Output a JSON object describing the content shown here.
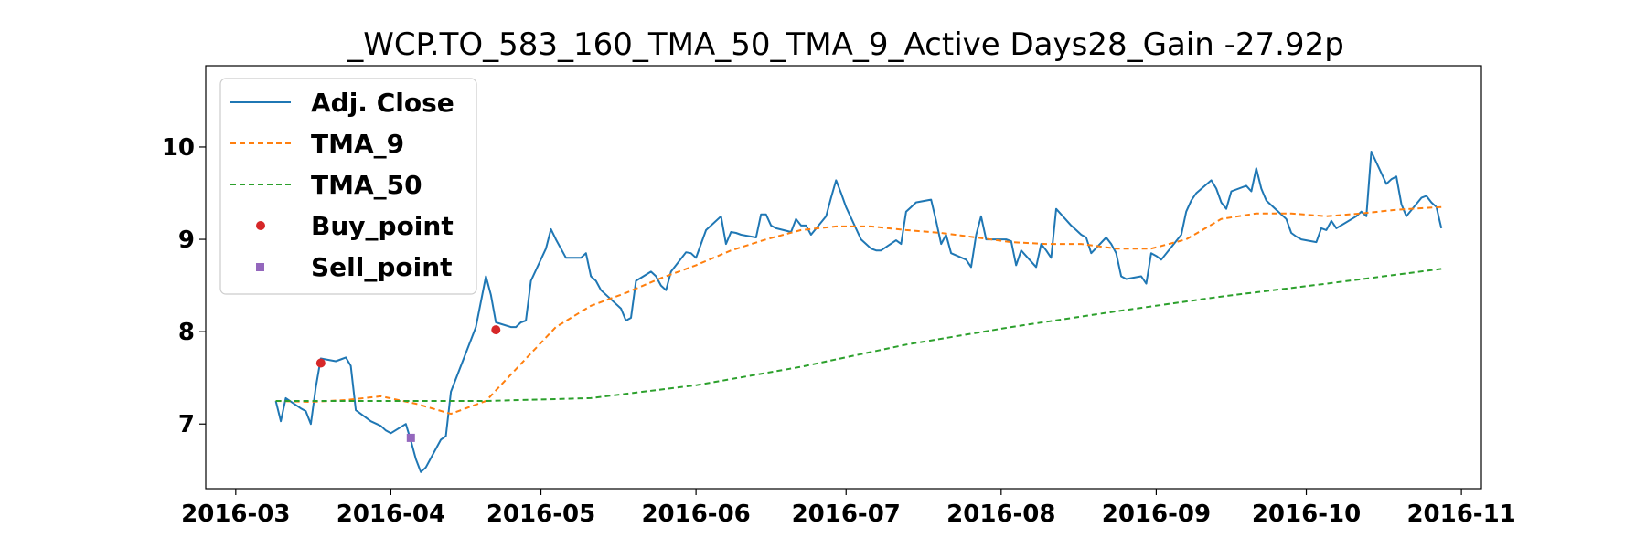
{
  "chart_data": {
    "type": "line",
    "title": "_WCP.TO_583_160_TMA_50_TMA_9_Active Days28_Gain -27.92p",
    "xlabel": "",
    "ylabel": "",
    "xlim": [
      "2016-02-24",
      "2016-11-05"
    ],
    "ylim": [
      6.3,
      10.88
    ],
    "x_ticks": [
      "2016-03",
      "2016-04",
      "2016-05",
      "2016-06",
      "2016-07",
      "2016-08",
      "2016-09",
      "2016-10",
      "2016-11"
    ],
    "y_ticks": [
      7,
      8,
      9,
      10
    ],
    "grid": false,
    "legend_position": "upper-left",
    "series": [
      {
        "name": "Adj. Close",
        "style": "solid",
        "color": "#1f77b4",
        "points": [
          [
            "2016-03-09",
            7.25
          ],
          [
            "2016-03-10",
            7.03
          ],
          [
            "2016-03-11",
            7.28
          ],
          [
            "2016-03-14",
            7.17
          ],
          [
            "2016-03-15",
            7.14
          ],
          [
            "2016-03-16",
            7.0
          ],
          [
            "2016-03-17",
            7.4
          ],
          [
            "2016-03-18",
            7.71
          ],
          [
            "2016-03-21",
            7.68
          ],
          [
            "2016-03-22",
            7.7
          ],
          [
            "2016-03-23",
            7.72
          ],
          [
            "2016-03-24",
            7.63
          ],
          [
            "2016-03-25",
            7.15
          ],
          [
            "2016-03-28",
            7.03
          ],
          [
            "2016-03-30",
            6.98
          ],
          [
            "2016-03-31",
            6.93
          ],
          [
            "2016-04-01",
            6.9
          ],
          [
            "2016-04-04",
            7.0
          ],
          [
            "2016-04-05",
            6.82
          ],
          [
            "2016-04-06",
            6.62
          ],
          [
            "2016-04-07",
            6.48
          ],
          [
            "2016-04-08",
            6.53
          ],
          [
            "2016-04-11",
            6.83
          ],
          [
            "2016-04-12",
            6.87
          ],
          [
            "2016-04-13",
            7.35
          ],
          [
            "2016-04-18",
            8.05
          ],
          [
            "2016-04-20",
            8.6
          ],
          [
            "2016-04-21",
            8.4
          ],
          [
            "2016-04-22",
            8.1
          ],
          [
            "2016-04-25",
            8.05
          ],
          [
            "2016-04-26",
            8.05
          ],
          [
            "2016-04-27",
            8.1
          ],
          [
            "2016-04-28",
            8.12
          ],
          [
            "2016-04-29",
            8.55
          ],
          [
            "2016-05-02",
            8.9
          ],
          [
            "2016-05-03",
            9.11
          ],
          [
            "2016-05-04",
            9.0
          ],
          [
            "2016-05-05",
            8.9
          ],
          [
            "2016-05-06",
            8.8
          ],
          [
            "2016-05-09",
            8.8
          ],
          [
            "2016-05-10",
            8.85
          ],
          [
            "2016-05-11",
            8.6
          ],
          [
            "2016-05-12",
            8.55
          ],
          [
            "2016-05-13",
            8.45
          ],
          [
            "2016-05-16",
            8.3
          ],
          [
            "2016-05-17",
            8.25
          ],
          [
            "2016-05-18",
            8.12
          ],
          [
            "2016-05-19",
            8.15
          ],
          [
            "2016-05-20",
            8.55
          ],
          [
            "2016-05-23",
            8.65
          ],
          [
            "2016-05-24",
            8.6
          ],
          [
            "2016-05-25",
            8.5
          ],
          [
            "2016-05-26",
            8.45
          ],
          [
            "2016-05-27",
            8.65
          ],
          [
            "2016-05-30",
            8.86
          ],
          [
            "2016-05-31",
            8.85
          ],
          [
            "2016-06-01",
            8.8
          ],
          [
            "2016-06-02",
            8.95
          ],
          [
            "2016-06-03",
            9.1
          ],
          [
            "2016-06-06",
            9.25
          ],
          [
            "2016-06-07",
            8.95
          ],
          [
            "2016-06-08",
            9.08
          ],
          [
            "2016-06-09",
            9.07
          ],
          [
            "2016-06-10",
            9.05
          ],
          [
            "2016-06-13",
            9.02
          ],
          [
            "2016-06-14",
            9.27
          ],
          [
            "2016-06-15",
            9.27
          ],
          [
            "2016-06-16",
            9.15
          ],
          [
            "2016-06-17",
            9.12
          ],
          [
            "2016-06-20",
            9.08
          ],
          [
            "2016-06-21",
            9.22
          ],
          [
            "2016-06-22",
            9.15
          ],
          [
            "2016-06-23",
            9.15
          ],
          [
            "2016-06-24",
            9.05
          ],
          [
            "2016-06-27",
            9.25
          ],
          [
            "2016-06-28",
            9.45
          ],
          [
            "2016-06-29",
            9.64
          ],
          [
            "2016-06-30",
            9.5
          ],
          [
            "2016-07-01",
            9.35
          ],
          [
            "2016-07-04",
            9.0
          ],
          [
            "2016-07-05",
            8.95
          ],
          [
            "2016-07-06",
            8.9
          ],
          [
            "2016-07-07",
            8.88
          ],
          [
            "2016-07-08",
            8.88
          ],
          [
            "2016-07-11",
            8.99
          ],
          [
            "2016-07-12",
            8.95
          ],
          [
            "2016-07-13",
            9.3
          ],
          [
            "2016-07-14",
            9.35
          ],
          [
            "2016-07-15",
            9.4
          ],
          [
            "2016-07-18",
            9.43
          ],
          [
            "2016-07-19",
            9.2
          ],
          [
            "2016-07-20",
            8.95
          ],
          [
            "2016-07-21",
            9.05
          ],
          [
            "2016-07-22",
            8.85
          ],
          [
            "2016-07-25",
            8.78
          ],
          [
            "2016-07-26",
            8.7
          ],
          [
            "2016-07-27",
            9.05
          ],
          [
            "2016-07-28",
            9.25
          ],
          [
            "2016-07-29",
            9.0
          ],
          [
            "2016-08-01",
            9.0
          ],
          [
            "2016-08-02",
            9.0
          ],
          [
            "2016-08-03",
            8.98
          ],
          [
            "2016-08-04",
            8.72
          ],
          [
            "2016-08-05",
            8.88
          ],
          [
            "2016-08-08",
            8.7
          ],
          [
            "2016-08-09",
            8.95
          ],
          [
            "2016-08-10",
            8.88
          ],
          [
            "2016-08-11",
            8.8
          ],
          [
            "2016-08-12",
            9.33
          ],
          [
            "2016-08-15",
            9.15
          ],
          [
            "2016-08-16",
            9.1
          ],
          [
            "2016-08-17",
            9.05
          ],
          [
            "2016-08-18",
            9.02
          ],
          [
            "2016-08-19",
            8.85
          ],
          [
            "2016-08-22",
            9.02
          ],
          [
            "2016-08-23",
            8.95
          ],
          [
            "2016-08-24",
            8.85
          ],
          [
            "2016-08-25",
            8.6
          ],
          [
            "2016-08-26",
            8.57
          ],
          [
            "2016-08-29",
            8.6
          ],
          [
            "2016-08-30",
            8.52
          ],
          [
            "2016-08-31",
            8.85
          ],
          [
            "2016-09-01",
            8.82
          ],
          [
            "2016-09-02",
            8.78
          ],
          [
            "2016-09-06",
            9.05
          ],
          [
            "2016-09-07",
            9.3
          ],
          [
            "2016-09-08",
            9.42
          ],
          [
            "2016-09-09",
            9.5
          ],
          [
            "2016-09-12",
            9.64
          ],
          [
            "2016-09-13",
            9.55
          ],
          [
            "2016-09-14",
            9.4
          ],
          [
            "2016-09-15",
            9.33
          ],
          [
            "2016-09-16",
            9.52
          ],
          [
            "2016-09-19",
            9.58
          ],
          [
            "2016-09-20",
            9.52
          ],
          [
            "2016-09-21",
            9.77
          ],
          [
            "2016-09-22",
            9.55
          ],
          [
            "2016-09-23",
            9.42
          ],
          [
            "2016-09-26",
            9.27
          ],
          [
            "2016-09-27",
            9.22
          ],
          [
            "2016-09-28",
            9.07
          ],
          [
            "2016-09-29",
            9.03
          ],
          [
            "2016-09-30",
            9.0
          ],
          [
            "2016-10-03",
            8.97
          ],
          [
            "2016-10-04",
            9.12
          ],
          [
            "2016-10-05",
            9.1
          ],
          [
            "2016-10-06",
            9.2
          ],
          [
            "2016-10-07",
            9.12
          ],
          [
            "2016-10-11",
            9.25
          ],
          [
            "2016-10-12",
            9.3
          ],
          [
            "2016-10-13",
            9.25
          ],
          [
            "2016-10-14",
            9.95
          ],
          [
            "2016-10-17",
            9.6
          ],
          [
            "2016-10-18",
            9.65
          ],
          [
            "2016-10-19",
            9.68
          ],
          [
            "2016-10-20",
            9.38
          ],
          [
            "2016-10-21",
            9.25
          ],
          [
            "2016-10-24",
            9.45
          ],
          [
            "2016-10-25",
            9.47
          ],
          [
            "2016-10-26",
            9.4
          ],
          [
            "2016-10-27",
            9.35
          ],
          [
            "2016-10-28",
            9.12
          ]
        ]
      },
      {
        "name": "TMA_9",
        "style": "dashed",
        "color": "#ff7f0e",
        "points": [
          [
            "2016-03-09",
            7.25
          ],
          [
            "2016-03-16",
            7.24
          ],
          [
            "2016-03-23",
            7.26
          ],
          [
            "2016-03-30",
            7.3
          ],
          [
            "2016-04-06",
            7.22
          ],
          [
            "2016-04-13",
            7.11
          ],
          [
            "2016-04-20",
            7.25
          ],
          [
            "2016-04-27",
            7.65
          ],
          [
            "2016-05-04",
            8.05
          ],
          [
            "2016-05-11",
            8.28
          ],
          [
            "2016-05-18",
            8.42
          ],
          [
            "2016-05-25",
            8.58
          ],
          [
            "2016-06-01",
            8.72
          ],
          [
            "2016-06-08",
            8.88
          ],
          [
            "2016-06-15",
            9.0
          ],
          [
            "2016-06-22",
            9.1
          ],
          [
            "2016-06-29",
            9.14
          ],
          [
            "2016-07-06",
            9.14
          ],
          [
            "2016-07-13",
            9.1
          ],
          [
            "2016-07-20",
            9.07
          ],
          [
            "2016-07-27",
            9.02
          ],
          [
            "2016-08-03",
            8.97
          ],
          [
            "2016-08-10",
            8.95
          ],
          [
            "2016-08-17",
            8.95
          ],
          [
            "2016-08-24",
            8.9
          ],
          [
            "2016-08-31",
            8.9
          ],
          [
            "2016-09-07",
            9.0
          ],
          [
            "2016-09-14",
            9.22
          ],
          [
            "2016-09-21",
            9.28
          ],
          [
            "2016-09-28",
            9.28
          ],
          [
            "2016-10-05",
            9.25
          ],
          [
            "2016-10-12",
            9.28
          ],
          [
            "2016-10-19",
            9.32
          ],
          [
            "2016-10-28",
            9.35
          ]
        ]
      },
      {
        "name": "TMA_50",
        "style": "dashed",
        "color": "#2ca02c",
        "points": [
          [
            "2016-03-09",
            7.25
          ],
          [
            "2016-03-30",
            7.25
          ],
          [
            "2016-04-20",
            7.25
          ],
          [
            "2016-05-11",
            7.28
          ],
          [
            "2016-06-01",
            7.42
          ],
          [
            "2016-06-22",
            7.62
          ],
          [
            "2016-07-13",
            7.86
          ],
          [
            "2016-08-03",
            8.05
          ],
          [
            "2016-08-24",
            8.22
          ],
          [
            "2016-09-14",
            8.38
          ],
          [
            "2016-10-05",
            8.52
          ],
          [
            "2016-10-28",
            8.68
          ]
        ]
      }
    ],
    "markers": [
      {
        "name": "Buy_point",
        "shape": "circle",
        "color": "#d62728",
        "points": [
          [
            "2016-03-18",
            7.66
          ],
          [
            "2016-04-22",
            8.02
          ]
        ]
      },
      {
        "name": "Sell_point",
        "shape": "square",
        "color": "#9467bd",
        "points": [
          [
            "2016-04-05",
            6.85
          ]
        ]
      }
    ],
    "legend": [
      "Adj. Close",
      "TMA_9",
      "TMA_50",
      "Buy_point",
      "Sell_point"
    ]
  }
}
